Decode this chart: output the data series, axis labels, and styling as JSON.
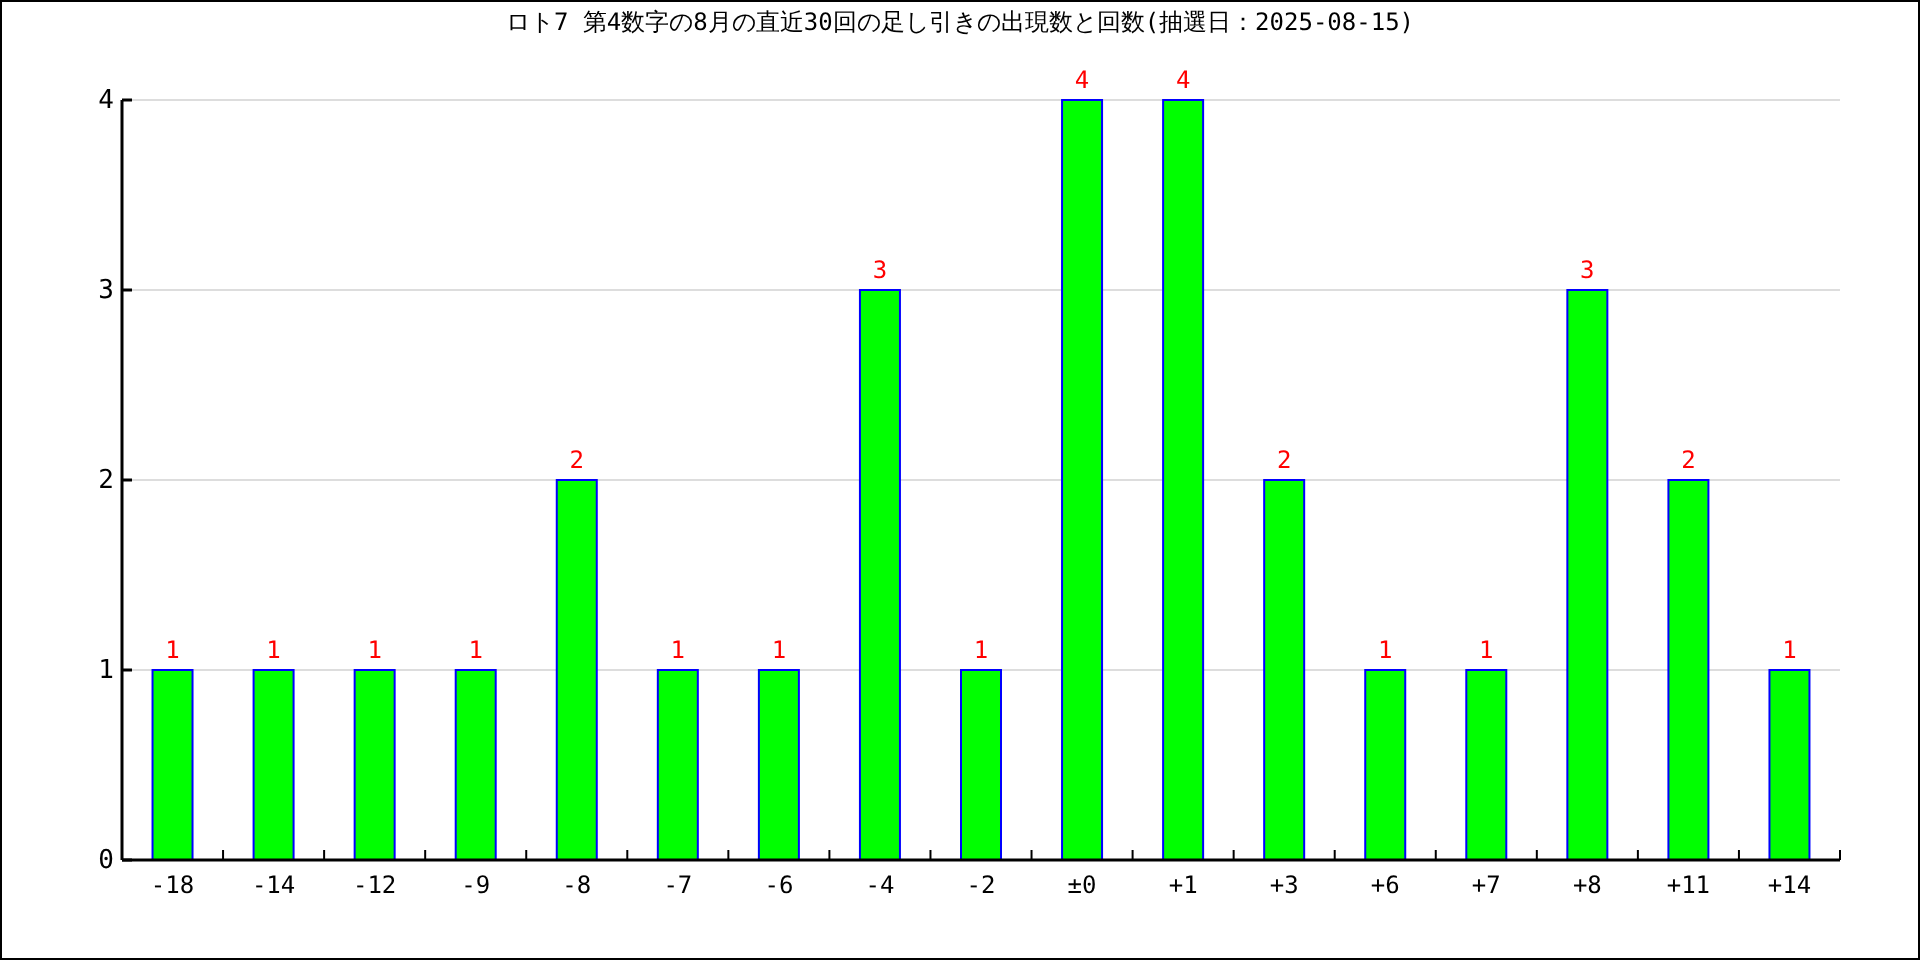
{
  "chart_data": {
    "type": "bar",
    "title": "ロト7 第4数字の8月の直近30回の足し引きの出現数と回数(抽選日：2025-08-15)",
    "categories": [
      "-18",
      "-14",
      "-12",
      "-9",
      "-8",
      "-7",
      "-6",
      "-4",
      "-2",
      "±0",
      "+1",
      "+3",
      "+6",
      "+7",
      "+8",
      "+11",
      "+14"
    ],
    "values": [
      1,
      1,
      1,
      1,
      2,
      1,
      1,
      3,
      1,
      4,
      4,
      2,
      1,
      1,
      3,
      2,
      1
    ],
    "color": "#00ff00",
    "ylim": [
      0,
      4
    ],
    "yticks": [
      0,
      1,
      2,
      3,
      4
    ],
    "grid": "y",
    "data_labels": true
  }
}
